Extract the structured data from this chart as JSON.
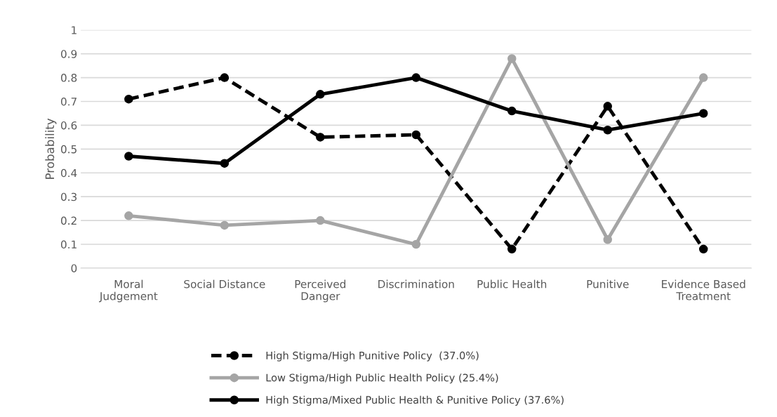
{
  "chart_data": {
    "type": "line",
    "ylabel": "Probability",
    "categories": [
      "Moral\nJudgement",
      "Social Distance",
      "Perceived\nDanger",
      "Discrimination",
      "Public Health",
      "Punitive",
      "Evidence Based\nTreatment"
    ],
    "series": [
      {
        "name": "High Stigma/High Punitive Policy  (37.0%)",
        "color": "#000000",
        "line_style": "dashed",
        "values": [
          0.71,
          0.8,
          0.55,
          0.56,
          0.08,
          0.68,
          0.08
        ]
      },
      {
        "name": "Low Stigma/High Public Health Policy (25.4%)",
        "color": "#a5a5a5",
        "line_style": "solid",
        "values": [
          0.22,
          0.18,
          0.2,
          0.1,
          0.88,
          0.12,
          0.8
        ]
      },
      {
        "name": "High Stigma/Mixed Public Health & Punitive Policy (37.6%)",
        "color": "#000000",
        "line_style": "solid",
        "values": [
          0.47,
          0.44,
          0.73,
          0.8,
          0.66,
          0.58,
          0.65
        ]
      }
    ],
    "ylim": [
      0,
      1
    ],
    "yticks": [
      0,
      0.1,
      0.2,
      0.3,
      0.4,
      0.5,
      0.6,
      0.7,
      0.8,
      0.9,
      1
    ],
    "grid": "y",
    "legend": "bottom",
    "marker": "circle"
  }
}
